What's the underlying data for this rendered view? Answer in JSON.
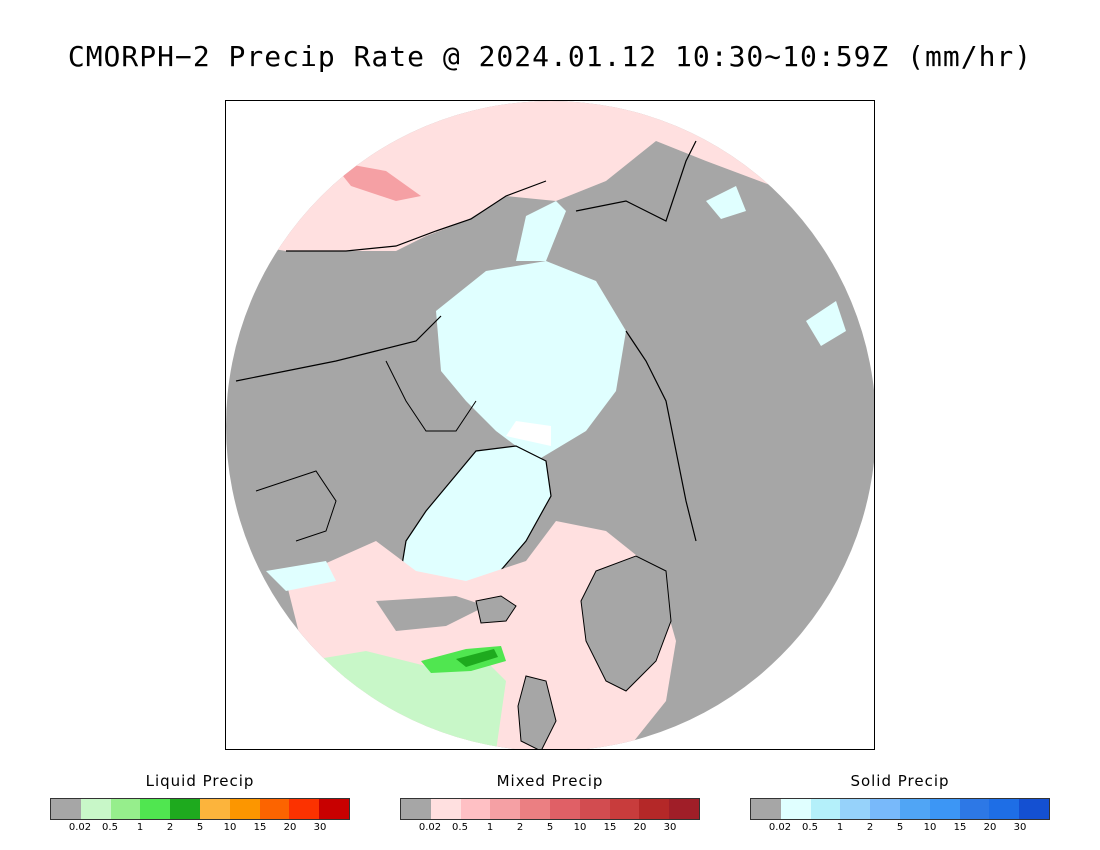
{
  "title": "CMORPH−2 Precip Rate @ 2024.01.12 10:30∼10:59Z (mm/hr)",
  "colors": {
    "no_precip": "#a6a6a6",
    "mixed_bg": "#ffe0e0",
    "solid_bg": "#e0ffff",
    "coast": "#000000"
  },
  "legends": [
    {
      "title": "Liquid Precip",
      "colors": [
        "#a6a6a6",
        "#c8f7c8",
        "#96ee8c",
        "#50e650",
        "#1eaa1e",
        "#fcb43c",
        "#fc9600",
        "#fc6400",
        "#fc3200",
        "#c80000"
      ],
      "ticks": [
        "0.02",
        "0.5",
        "1",
        "2",
        "5",
        "10",
        "15",
        "20",
        "30"
      ]
    },
    {
      "title": "Mixed Precip",
      "colors": [
        "#a6a6a6",
        "#ffe0e0",
        "#ffc0c4",
        "#f5a0a4",
        "#eb7f82",
        "#e06066",
        "#d24c50",
        "#c83c3c",
        "#b42828",
        "#a01e28"
      ],
      "ticks": [
        "0.02",
        "0.5",
        "1",
        "2",
        "5",
        "10",
        "15",
        "20",
        "30"
      ]
    },
    {
      "title": "Solid Precip",
      "colors": [
        "#a6a6a6",
        "#e0ffff",
        "#b4f0fa",
        "#96d2fa",
        "#78b9fa",
        "#50a5f5",
        "#3c96f5",
        "#2d78e6",
        "#1e6ee6",
        "#1450d2"
      ],
      "ticks": [
        "0.02",
        "0.5",
        "1",
        "2",
        "5",
        "10",
        "15",
        "20",
        "30"
      ]
    }
  ]
}
